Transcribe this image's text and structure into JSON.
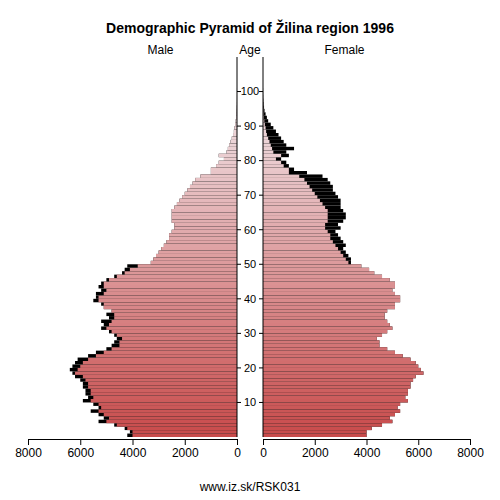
{
  "chart_data": {
    "type": "bar",
    "orientation": "horizontal",
    "title": "Demographic Pyramid of Žilina region 1996",
    "y_label": "Age",
    "caption": "www.iz.sk/RSK031",
    "x": [
      0,
      1,
      2,
      3,
      4,
      5,
      6,
      7,
      8,
      9,
      10,
      11,
      12,
      13,
      14,
      15,
      16,
      17,
      18,
      19,
      20,
      21,
      22,
      23,
      24,
      25,
      26,
      27,
      28,
      29,
      30,
      31,
      32,
      33,
      34,
      35,
      36,
      37,
      38,
      39,
      40,
      41,
      42,
      43,
      44,
      45,
      46,
      47,
      48,
      49,
      50,
      51,
      52,
      53,
      54,
      55,
      56,
      57,
      58,
      59,
      60,
      61,
      62,
      63,
      64,
      65,
      66,
      67,
      68,
      69,
      70,
      71,
      72,
      73,
      74,
      75,
      76,
      77,
      78,
      79,
      80,
      81,
      82,
      83,
      84,
      85,
      86,
      87,
      88,
      89,
      90,
      91,
      92,
      93,
      94,
      95,
      96,
      97,
      98,
      99,
      100
    ],
    "xlim": [
      0,
      8000
    ],
    "xticks": [
      0,
      2000,
      4000,
      6000,
      8000
    ],
    "ylim": [
      0,
      110
    ],
    "yticks": [
      10,
      20,
      30,
      40,
      50,
      60,
      70,
      80,
      90,
      100
    ],
    "series": [
      {
        "name": "Male",
        "color": "#c84b4b",
        "values": [
          4200,
          4100,
          4300,
          4700,
          5300,
          5100,
          5300,
          5600,
          5300,
          5500,
          5900,
          5700,
          5800,
          5800,
          5900,
          5900,
          6000,
          6200,
          6300,
          6400,
          6300,
          6200,
          6100,
          5700,
          5400,
          5000,
          4800,
          4700,
          4600,
          4700,
          4900,
          5200,
          5100,
          5200,
          4900,
          5000,
          4800,
          5100,
          5200,
          5500,
          5400,
          5400,
          5200,
          5300,
          5200,
          5000,
          4700,
          4400,
          4300,
          4200,
          3300,
          3200,
          3100,
          3000,
          2900,
          2800,
          2700,
          2600,
          2600,
          2500,
          2400,
          2400,
          2500,
          2500,
          2500,
          2500,
          2400,
          2300,
          2200,
          2100,
          2000,
          1900,
          1800,
          1700,
          1600,
          1400,
          1000,
          1000,
          800,
          700,
          500,
          700,
          400,
          350,
          300,
          250,
          200,
          150,
          120,
          100,
          70,
          50,
          30,
          20,
          15,
          10,
          5,
          3,
          2,
          1,
          1
        ]
      },
      {
        "name": "Female",
        "color": "#c84b4b",
        "values": [
          4000,
          4000,
          4200,
          4600,
          5000,
          4900,
          5100,
          5300,
          5200,
          5300,
          5600,
          5500,
          5600,
          5600,
          5700,
          5700,
          5800,
          5900,
          6200,
          6100,
          6000,
          5900,
          5700,
          5400,
          5100,
          4800,
          4500,
          4500,
          4400,
          4600,
          4800,
          5000,
          4900,
          4800,
          4700,
          4700,
          4800,
          5100,
          5100,
          5300,
          5300,
          5100,
          5000,
          5100,
          5100,
          4900,
          4600,
          4300,
          4100,
          3800,
          3400,
          3400,
          3300,
          3200,
          3100,
          3200,
          3100,
          3000,
          2900,
          2800,
          3000,
          2900,
          3100,
          3200,
          3200,
          3100,
          3000,
          3000,
          3000,
          2900,
          2800,
          2700,
          2700,
          2600,
          2500,
          2300,
          1700,
          1200,
          1000,
          900,
          700,
          1000,
          900,
          1200,
          900,
          800,
          700,
          600,
          500,
          400,
          300,
          200,
          150,
          100,
          60,
          40,
          25,
          15,
          8,
          5,
          3
        ]
      }
    ]
  }
}
